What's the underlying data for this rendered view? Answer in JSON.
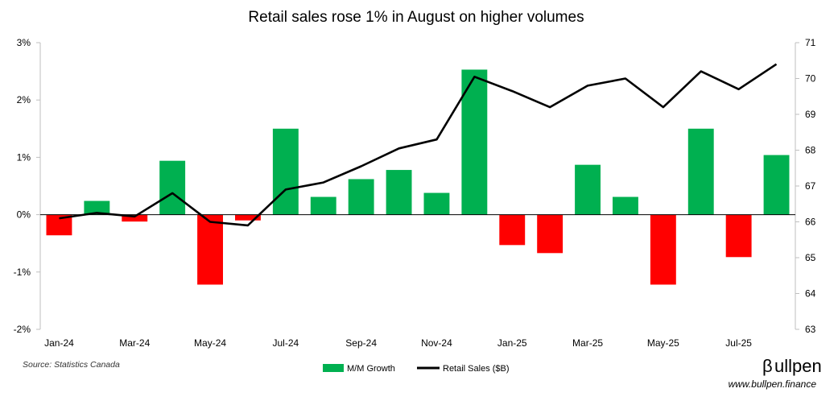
{
  "chart_data": {
    "type": "bar+line",
    "title": "Retail sales rose 1% in August on higher volumes",
    "categories": [
      "Jan-24",
      "Feb-24",
      "Mar-24",
      "Apr-24",
      "May-24",
      "Jun-24",
      "Jul-24",
      "Aug-24",
      "Sep-24",
      "Oct-24",
      "Nov-24",
      "Dec-24",
      "Jan-25",
      "Feb-25",
      "Mar-25",
      "Apr-25",
      "May-25",
      "Jun-25",
      "Jul-25",
      "Aug-25"
    ],
    "x_tick_labels": [
      "Jan-24",
      "Mar-24",
      "May-24",
      "Jul-24",
      "Sep-24",
      "Nov-24",
      "Jan-25",
      "Mar-25",
      "May-25",
      "Jul-25"
    ],
    "series": [
      {
        "name": "M/M Growth",
        "axis": "left",
        "kind": "bar",
        "positive_color": "#00b050",
        "negative_color": "#ff0000",
        "values": [
          -0.36,
          0.24,
          -0.12,
          0.94,
          -1.22,
          -0.1,
          1.5,
          0.31,
          0.62,
          0.78,
          0.38,
          2.53,
          -0.53,
          -0.67,
          0.87,
          0.31,
          -1.22,
          1.5,
          -0.74,
          1.04
        ]
      },
      {
        "name": "Retail Sales ($B)",
        "axis": "right",
        "kind": "line",
        "color": "#000000",
        "values": [
          66.1,
          66.25,
          66.15,
          66.8,
          66.0,
          65.9,
          66.9,
          67.1,
          67.55,
          68.05,
          68.3,
          70.05,
          69.65,
          69.2,
          69.8,
          70.0,
          69.2,
          70.2,
          69.7,
          70.4
        ]
      }
    ],
    "y_left": {
      "min": -2,
      "max": 3,
      "step": 1,
      "tick_labels": [
        "-2%",
        "-1%",
        "0%",
        "1%",
        "2%",
        "3%"
      ]
    },
    "y_right": {
      "min": 63,
      "max": 71,
      "step": 1,
      "tick_labels": [
        "63",
        "64",
        "65",
        "66",
        "67",
        "68",
        "69",
        "70",
        "71"
      ]
    },
    "legend": {
      "position": "bottom-center",
      "items": [
        "M/M Growth",
        "Retail Sales ($B)"
      ]
    }
  },
  "footer": {
    "source": "Source: Statistics Canada",
    "brand_symbol": "β",
    "brand_name": "ullpen",
    "url": "www.bullpen.finance"
  }
}
